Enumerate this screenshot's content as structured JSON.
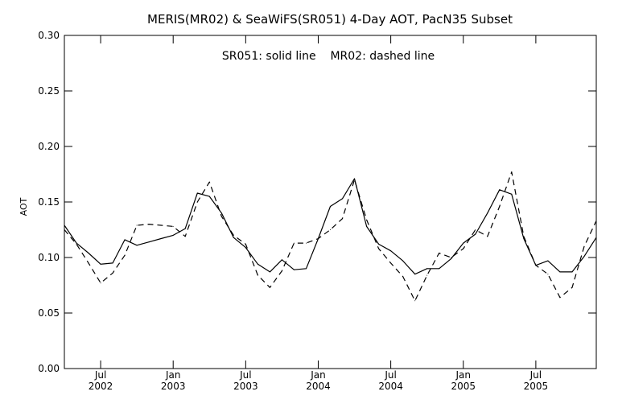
{
  "chart_data": {
    "type": "line",
    "title": "MERIS(MR02) & SeaWiFS(SR051) 4-Day AOT, PacN35 Subset",
    "annotation": "SR051: solid line    MR02: dashed line",
    "xlabel": "",
    "ylabel": "AOT",
    "ylim": [
      0.0,
      0.3
    ],
    "yticks": [
      "0.00",
      "0.05",
      "0.10",
      "0.15",
      "0.20",
      "0.25",
      "0.30"
    ],
    "xlim": [
      "2002-04",
      "2005-12"
    ],
    "xticks": [
      {
        "month": "Jul",
        "year": "2002",
        "x": "2002-07"
      },
      {
        "month": "Jan",
        "year": "2003",
        "x": "2003-01"
      },
      {
        "month": "Jul",
        "year": "2003",
        "x": "2003-07"
      },
      {
        "month": "Jan",
        "year": "2004",
        "x": "2004-01"
      },
      {
        "month": "Jul",
        "year": "2004",
        "x": "2004-07"
      },
      {
        "month": "Jan",
        "year": "2005",
        "x": "2005-01"
      },
      {
        "month": "Jul",
        "year": "2005",
        "x": "2005-07"
      }
    ],
    "grid": false,
    "series": [
      {
        "name": "SR051",
        "style": "solid",
        "color": "#000000",
        "x": [
          "2002-04",
          "2002-05",
          "2002-06",
          "2002-07",
          "2002-08",
          "2002-09",
          "2002-10",
          "2002-11",
          "2002-12",
          "2003-01",
          "2003-02",
          "2003-03",
          "2003-04",
          "2003-05",
          "2003-06",
          "2003-07",
          "2003-08",
          "2003-09",
          "2003-10",
          "2003-11",
          "2003-12",
          "2004-01",
          "2004-02",
          "2004-03",
          "2004-04",
          "2004-05",
          "2004-06",
          "2004-07",
          "2004-08",
          "2004-09",
          "2004-10",
          "2004-11",
          "2004-12",
          "2005-01",
          "2005-02",
          "2005-03",
          "2005-04",
          "2005-05",
          "2005-06",
          "2005-07",
          "2005-08",
          "2005-09",
          "2005-10",
          "2005-11",
          "2005-12"
        ],
        "y": [
          0.129,
          0.113,
          0.104,
          0.094,
          0.095,
          0.116,
          0.111,
          0.114,
          0.117,
          0.12,
          0.126,
          0.158,
          0.155,
          0.14,
          0.118,
          0.109,
          0.094,
          0.087,
          0.098,
          0.089,
          0.09,
          0.117,
          0.146,
          0.153,
          0.171,
          0.128,
          0.112,
          0.106,
          0.097,
          0.085,
          0.09,
          0.09,
          0.099,
          0.113,
          0.121,
          0.14,
          0.161,
          0.157,
          0.117,
          0.093,
          0.097,
          0.087,
          0.087,
          0.101,
          0.118
        ]
      },
      {
        "name": "MR02",
        "style": "dashed",
        "color": "#000000",
        "x": [
          "2002-04",
          "2002-05",
          "2002-06",
          "2002-07",
          "2002-08",
          "2002-09",
          "2002-10",
          "2002-11",
          "2002-12",
          "2003-01",
          "2003-02",
          "2003-03",
          "2003-04",
          "2003-05",
          "2003-06",
          "2003-07",
          "2003-08",
          "2003-09",
          "2003-10",
          "2003-11",
          "2003-12",
          "2004-01",
          "2004-02",
          "2004-03",
          "2004-04",
          "2004-05",
          "2004-06",
          "2004-07",
          "2004-08",
          "2004-09",
          "2004-10",
          "2004-11",
          "2004-12",
          "2005-01",
          "2005-02",
          "2005-03",
          "2005-04",
          "2005-05",
          "2005-06",
          "2005-07",
          "2005-08",
          "2005-09",
          "2005-10",
          "2005-11",
          "2005-12"
        ],
        "y": [
          0.125,
          0.112,
          0.095,
          0.077,
          0.086,
          0.102,
          0.129,
          0.13,
          0.129,
          0.128,
          0.119,
          0.15,
          0.168,
          0.137,
          0.12,
          0.112,
          0.084,
          0.073,
          0.088,
          0.113,
          0.113,
          0.117,
          0.125,
          0.135,
          0.17,
          0.134,
          0.108,
          0.095,
          0.083,
          0.061,
          0.084,
          0.104,
          0.1,
          0.108,
          0.125,
          0.119,
          0.146,
          0.177,
          0.119,
          0.093,
          0.085,
          0.064,
          0.073,
          0.11,
          0.133
        ]
      }
    ]
  }
}
